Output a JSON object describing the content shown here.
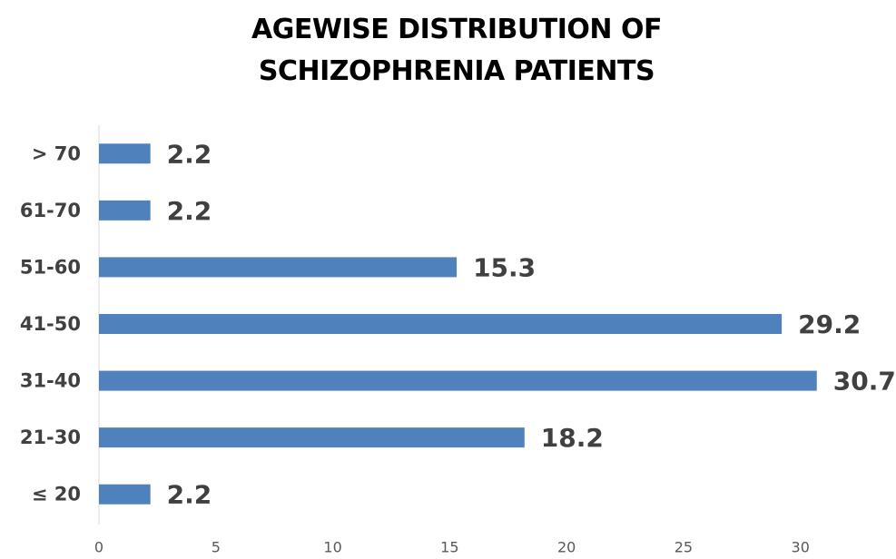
{
  "chart_data": {
    "type": "bar",
    "orientation": "horizontal",
    "title": "AGEWISE DISTRIBUTION OF SCHIZOPHRENIA PATIENTS",
    "categories": [
      "≤ 20",
      "21-30",
      "31-40",
      "41-50",
      "51-60",
      "61-70",
      "> 70"
    ],
    "values": [
      2.2,
      18.2,
      30.7,
      29.2,
      15.3,
      2.2,
      2.2
    ],
    "color": "#4f81bd",
    "xlim": [
      0,
      33
    ],
    "xticks": [
      0,
      5,
      10,
      15,
      20,
      25,
      30
    ],
    "grid": false
  }
}
